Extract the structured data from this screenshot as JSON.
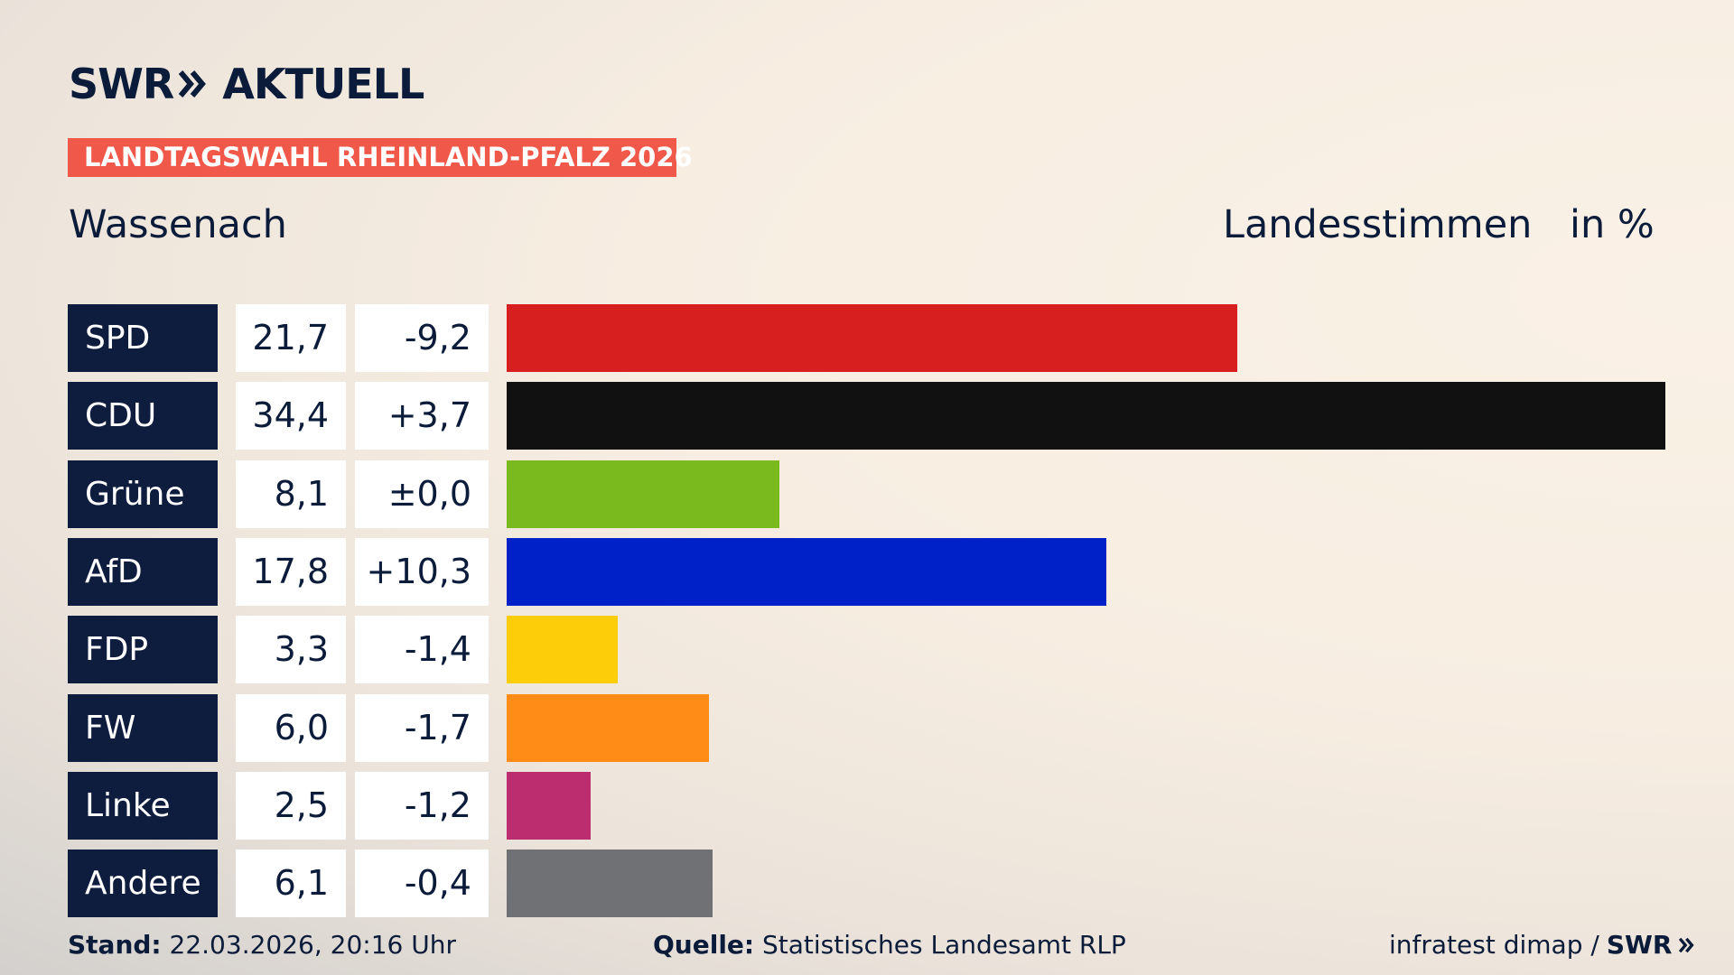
{
  "brand": "SWR",
  "product": "AKTUELL",
  "badge": "LANDTAGSWAHL RHEINLAND-PFALZ 2026",
  "footer": {
    "stand_label": "Stand:",
    "stand": "22.03.2026, 20:16 Uhr",
    "source_label": "Quelle:",
    "source": "Statistisches Landesamt RLP",
    "credit": "infratest dimap /",
    "credit_brand": "SWR"
  },
  "chart_data": {
    "type": "bar",
    "orientation": "horizontal",
    "title": "Wassenach",
    "subtitle": "Landesstimmen",
    "unit": "in %",
    "categories": [
      "SPD",
      "CDU",
      "Grüne",
      "AfD",
      "FDP",
      "FW",
      "Linke",
      "Andere"
    ],
    "values": [
      21.7,
      34.4,
      8.1,
      17.8,
      3.3,
      6.0,
      2.5,
      6.1
    ],
    "value_labels": [
      "21,7",
      "34,4",
      "8,1",
      "17,8",
      "3,3",
      "6,0",
      "2,5",
      "6,1"
    ],
    "changes": [
      "-9,2",
      "+3,7",
      "±0,0",
      "+10,3",
      "-1,4",
      "-1,7",
      "-1,2",
      "-0,4"
    ],
    "colors": [
      "#d71f1f",
      "#111111",
      "#7aba1e",
      "#0020c8",
      "#fecd0a",
      "#fe8c17",
      "#bc2d70",
      "#707174"
    ]
  }
}
